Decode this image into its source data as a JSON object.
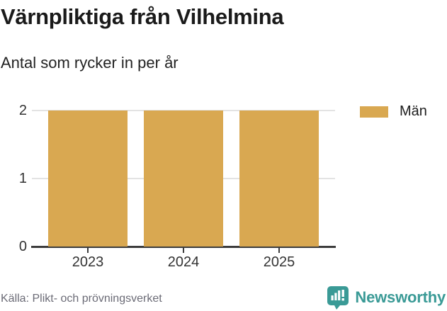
{
  "chart_data": {
    "type": "bar",
    "title": "Värnpliktiga från Vilhelmina",
    "subtitle": "Antal som rycker in per år",
    "categories": [
      "2023",
      "2024",
      "2025"
    ],
    "series": [
      {
        "name": "Män",
        "values": [
          2,
          2,
          2
        ]
      }
    ],
    "xlabel": "",
    "ylabel": "",
    "ylim": [
      0,
      2
    ],
    "yticks": [
      0,
      1,
      2
    ],
    "grid": true,
    "legend_position": "top-right",
    "bar_color": "#d9a851"
  },
  "legend": {
    "label": "Män",
    "swatch_color": "#d9a851"
  },
  "footer": {
    "source": "Källa: Plikt- och prövningsverket",
    "brand_name": "Newsworthy"
  },
  "colors": {
    "bar": "#d9a851",
    "gridline": "#e3e3e3",
    "axis": "#3c3c3c",
    "title": "#1a1a1a",
    "tick_label": "#333333",
    "source_text": "#6b6b76",
    "brand_teal": "#3a9a96"
  }
}
